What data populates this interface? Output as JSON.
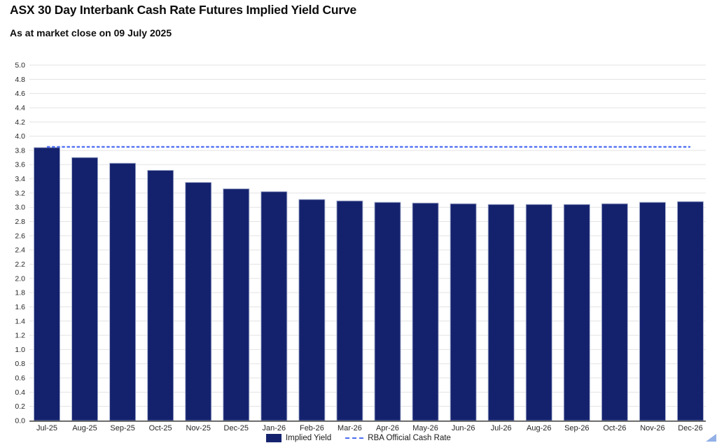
{
  "chart_data": {
    "type": "bar",
    "title": "ASX 30 Day Interbank Cash Rate Futures Implied Yield Curve",
    "subtitle": "As at market close on 09 July 2025",
    "categories": [
      "Jul-25",
      "Aug-25",
      "Sep-25",
      "Oct-25",
      "Nov-25",
      "Dec-25",
      "Jan-26",
      "Feb-26",
      "Mar-26",
      "Apr-26",
      "May-26",
      "Jun-26",
      "Jul-26",
      "Aug-26",
      "Sep-26",
      "Oct-26",
      "Nov-26",
      "Dec-26"
    ],
    "series": [
      {
        "name": "Implied Yield",
        "type": "bar",
        "values": [
          3.84,
          3.7,
          3.62,
          3.52,
          3.35,
          3.26,
          3.22,
          3.11,
          3.09,
          3.07,
          3.06,
          3.05,
          3.04,
          3.04,
          3.04,
          3.05,
          3.07,
          3.08
        ]
      },
      {
        "name": "RBA Official Cash Rate",
        "type": "line",
        "style": "dashed",
        "value": 3.85
      }
    ],
    "xlabel": "",
    "ylabel": "",
    "ylim": [
      0.0,
      5.0
    ],
    "ytick_step": 0.2,
    "ytick_format_decimals": 1,
    "grid": true,
    "legend_position": "bottom",
    "colors": {
      "bar_fill": "#14226E",
      "bar_border": "#A7B0CE",
      "rba_line": "#4E6EF2",
      "gridline": "#E3E3E3",
      "axis_line": "#3C3C3C",
      "title_text": "#0D0D0D",
      "tick_text": "#262626"
    }
  }
}
